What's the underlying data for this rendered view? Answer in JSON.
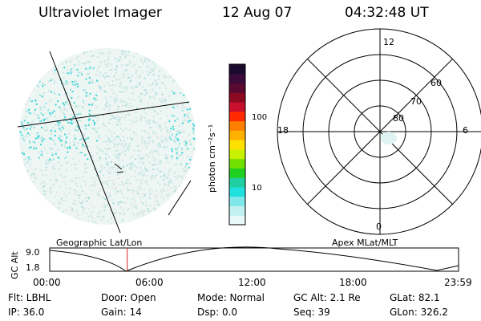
{
  "header": {
    "instrument": "Ultraviolet Imager",
    "date": "12 Aug 07",
    "time": "04:32:48 UT"
  },
  "colorbar": {
    "unit_label": "photon cm⁻²s⁻¹",
    "tick_labels": [
      "100",
      "10"
    ],
    "colors": [
      "#1a0a2e",
      "#3a0a3a",
      "#5a0a30",
      "#8b0a20",
      "#c8102e",
      "#ff2a00",
      "#ff7f00",
      "#ffb000",
      "#ffe000",
      "#c8f000",
      "#70e000",
      "#20d020",
      "#20d0a0",
      "#20e0e0",
      "#80e8e8",
      "#c0f0f0",
      "#e8f8f8"
    ]
  },
  "polar_plot": {
    "mlt_labels": [
      "12",
      "18",
      "6",
      "0"
    ],
    "mlat_labels": [
      "60",
      "70",
      "80"
    ]
  },
  "alt_panel": {
    "left_label": "Geographic Lat/Lon",
    "right_label": "Apex MLat/MLT",
    "y_axis_label": "GC Alt",
    "y_ticks": [
      "9.0",
      "1.8"
    ],
    "x_ticks": [
      "00:00",
      "06:00",
      "12:00",
      "18:00",
      "23:59"
    ],
    "marker_time_hours": 4.55,
    "marker_color": "#d0281a"
  },
  "info": {
    "flt": "Flt: LBHL",
    "door": "Door: Open",
    "mode": "Mode: Normal",
    "gc_alt": "GC Alt: 2.1 Re",
    "glat": "GLat:  82.1",
    "ip": "IP: 36.0",
    "gain": "Gain: 14",
    "dsp": "Dsp:     0.0",
    "seq": "Seq: 39",
    "glon": "GLon: 326.2"
  }
}
